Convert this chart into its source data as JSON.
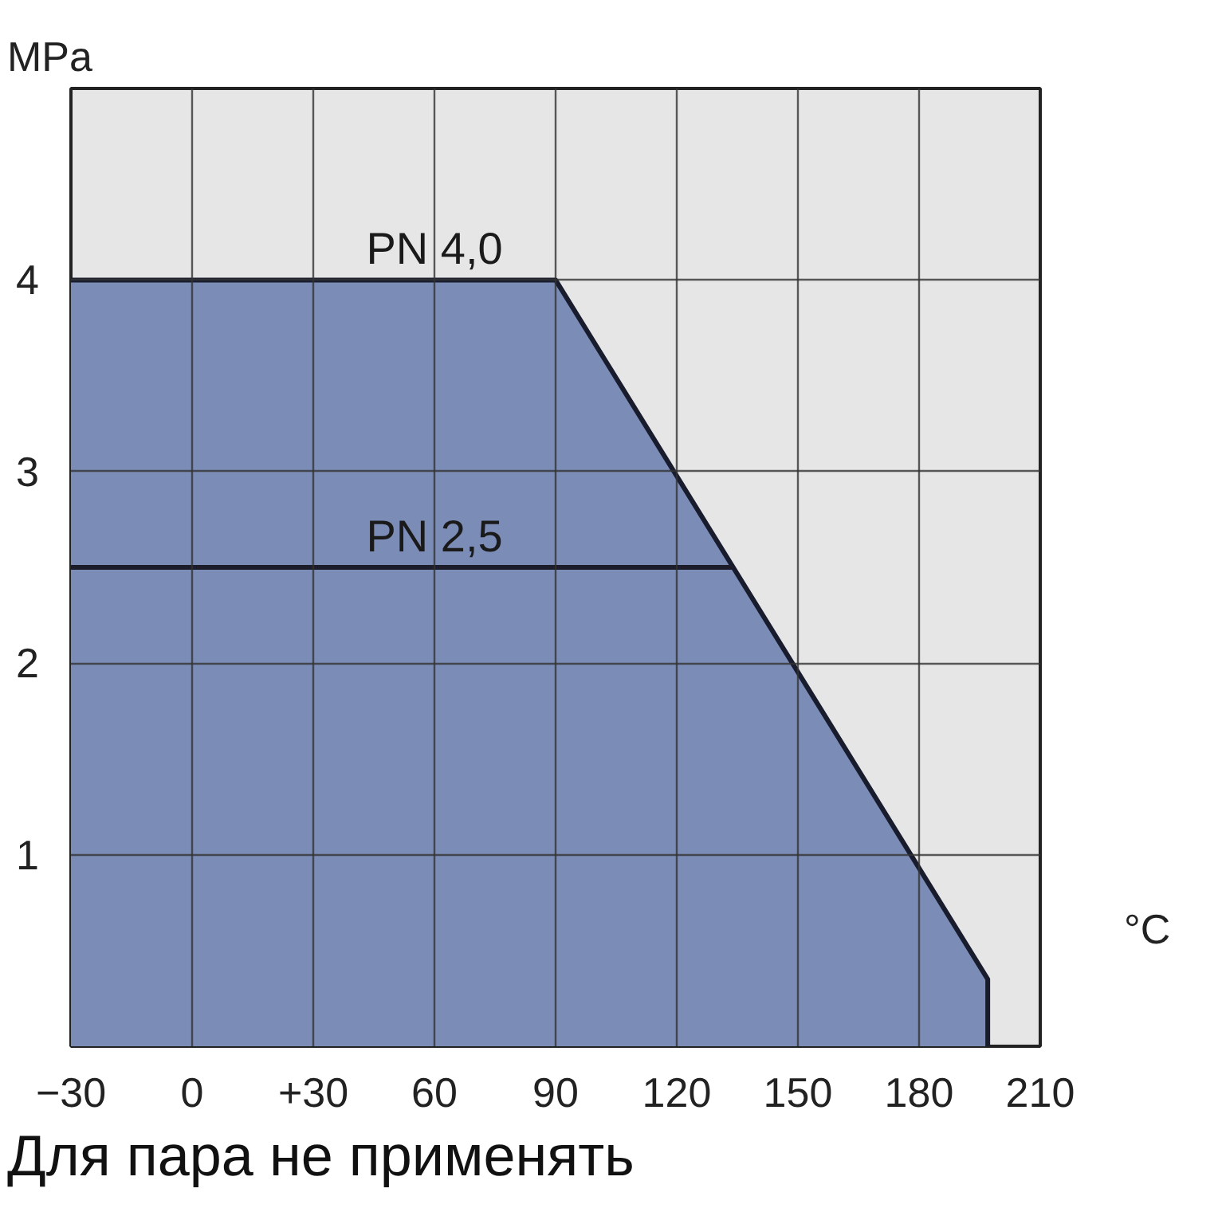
{
  "chart_data": {
    "type": "area",
    "xlabel": "°C",
    "ylabel": "MPa",
    "xlim": [
      -30,
      210
    ],
    "ylim": [
      0,
      5
    ],
    "xticks": [
      -30,
      0,
      {
        "value": 30,
        "label": "+30"
      },
      60,
      90,
      120,
      150,
      180,
      210
    ],
    "yticks": [
      1,
      2,
      3,
      4
    ],
    "grid": true,
    "series": [
      {
        "name": "PN 4,0",
        "color": "#7b8cb6",
        "x": [
          -30,
          90,
          197,
          197
        ],
        "values": [
          4,
          4,
          0.35,
          0
        ]
      },
      {
        "name": "PN 2,5",
        "type": "line",
        "color": "#1c1c2a",
        "x": [
          -30,
          134
        ],
        "values": [
          2.5,
          2.5
        ]
      }
    ],
    "annotations": [
      "Для пара не применять"
    ]
  }
}
